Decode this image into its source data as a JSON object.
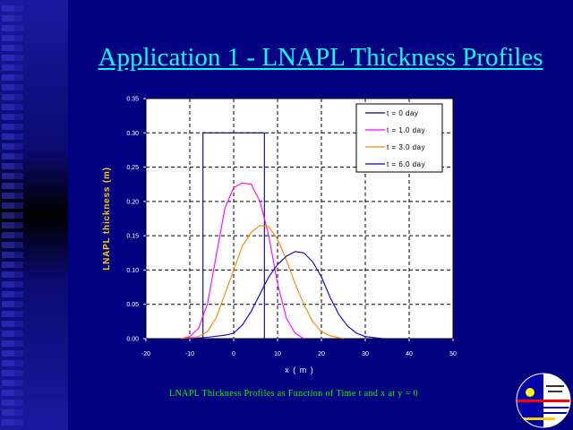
{
  "slide": {
    "title": "Application 1 - LNAPL Thickness Profiles",
    "caption": "LNAPL Thickness Profiles as Function of Time t and x at y = 0"
  },
  "colors": {
    "background": "#000080",
    "title": "#00ffff",
    "caption": "#00ff00",
    "ylabel": "#ffcc00",
    "plot_bg": "#ffffff"
  },
  "chart_data": {
    "type": "line",
    "title": "",
    "xlabel": "x ( m )",
    "ylabel": "LNAPL thickness (m)",
    "xlim": [
      -20,
      50
    ],
    "ylim": [
      0,
      0.35
    ],
    "xticks": [
      "-20",
      "-10",
      "0",
      "10",
      "20",
      "30",
      "40",
      "50"
    ],
    "yticks": [
      "0.00",
      "0.05",
      "0.10",
      "0.15",
      "0.20",
      "0.25",
      "0.30",
      "0.35"
    ],
    "grid": true,
    "legend_position": "top-right",
    "series": [
      {
        "name": "t = 0 day",
        "color": "#000080",
        "points": [
          [
            -7,
            0
          ],
          [
            -7,
            0.3
          ],
          [
            7,
            0.3
          ],
          [
            7,
            0
          ]
        ]
      },
      {
        "name": "t = 1.0 day",
        "color": "#ff00ff",
        "points": [
          [
            -12,
            0
          ],
          [
            -10,
            0.003
          ],
          [
            -8,
            0.015
          ],
          [
            -6,
            0.05
          ],
          [
            -4,
            0.12
          ],
          [
            -2,
            0.19
          ],
          [
            0,
            0.22
          ],
          [
            2,
            0.227
          ],
          [
            4,
            0.225
          ],
          [
            6,
            0.2
          ],
          [
            8,
            0.15
          ],
          [
            10,
            0.08
          ],
          [
            12,
            0.03
          ],
          [
            14,
            0.008
          ],
          [
            16,
            0
          ]
        ]
      },
      {
        "name": "t = 3.0 day",
        "color": "#ff8000",
        "points": [
          [
            -12,
            0
          ],
          [
            -8,
            0.003
          ],
          [
            -6,
            0.01
          ],
          [
            -4,
            0.03
          ],
          [
            -2,
            0.065
          ],
          [
            0,
            0.1
          ],
          [
            2,
            0.135
          ],
          [
            4,
            0.155
          ],
          [
            6,
            0.165
          ],
          [
            8,
            0.163
          ],
          [
            10,
            0.145
          ],
          [
            12,
            0.115
          ],
          [
            14,
            0.08
          ],
          [
            16,
            0.05
          ],
          [
            18,
            0.025
          ],
          [
            20,
            0.01
          ],
          [
            22,
            0.004
          ],
          [
            25,
            0
          ]
        ]
      },
      {
        "name": "t = 6.0 day",
        "color": "#0000cc",
        "points": [
          [
            -10,
            0
          ],
          [
            -6,
            0.002
          ],
          [
            -2,
            0.005
          ],
          [
            0,
            0.008
          ],
          [
            2,
            0.02
          ],
          [
            4,
            0.04
          ],
          [
            6,
            0.065
          ],
          [
            8,
            0.09
          ],
          [
            10,
            0.108
          ],
          [
            12,
            0.12
          ],
          [
            14,
            0.127
          ],
          [
            16,
            0.125
          ],
          [
            18,
            0.112
          ],
          [
            20,
            0.09
          ],
          [
            22,
            0.06
          ],
          [
            24,
            0.035
          ],
          [
            26,
            0.018
          ],
          [
            28,
            0.008
          ],
          [
            30,
            0.003
          ],
          [
            34,
            0
          ]
        ]
      }
    ]
  }
}
